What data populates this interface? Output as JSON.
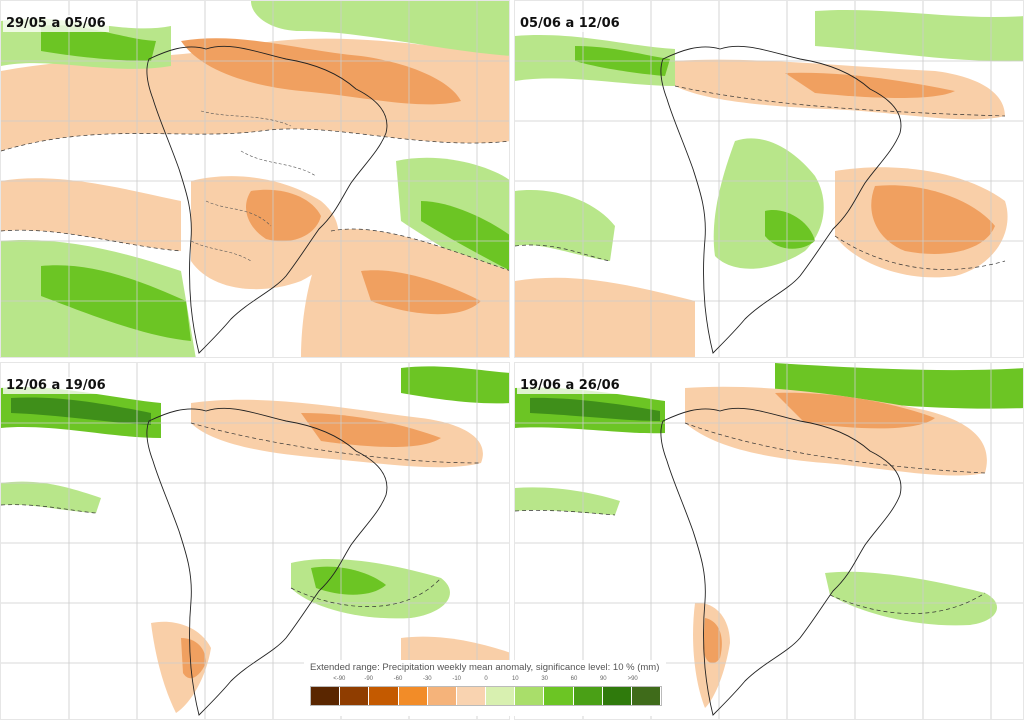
{
  "panels": [
    {
      "title": "29/05 a 05/06"
    },
    {
      "title": "05/06 a 12/06"
    },
    {
      "title": "12/06 a 19/06"
    },
    {
      "title": "19/06 a 26/06"
    }
  ],
  "legend": {
    "title": "Extended range: Precipitation weekly mean anomaly, significance level: 10 % (mm)",
    "ticks": [
      "<-90",
      "-90",
      "-60",
      "-30",
      "-10",
      "0",
      "10",
      "30",
      "60",
      "90",
      ">90"
    ],
    "colors": [
      "#5a2600",
      "#8f3d00",
      "#c45a00",
      "#f28c28",
      "#f5b37a",
      "#f9d3b0",
      "#d8f0b0",
      "#a9de6a",
      "#6cc524",
      "#4aa016",
      "#2f7a0c",
      "#3f6b1a"
    ]
  },
  "map_colors": {
    "dry_strong": "#f0a060",
    "dry_light": "#f9cfa8",
    "wet_light": "#b8e68a",
    "wet_strong": "#6cc524",
    "wet_dark": "#3f8f1a",
    "grid": "#cccccc",
    "coast": "#222222"
  }
}
